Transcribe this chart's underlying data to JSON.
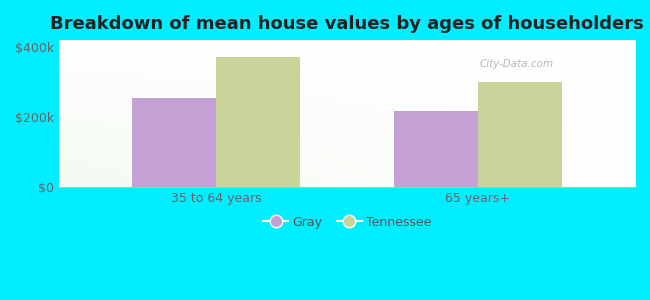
{
  "title": "Breakdown of mean house values by ages of householders",
  "categories": [
    "35 to 64 years",
    "65 years+"
  ],
  "gray_values": [
    255000,
    218000
  ],
  "tennessee_values": [
    372000,
    300000
  ],
  "gray_color": "#c4a0d4",
  "tennessee_color": "#c8d49a",
  "background_color": "#00eeff",
  "ylim": [
    0,
    420000
  ],
  "yticks": [
    0,
    200000,
    400000
  ],
  "ytick_labels": [
    "$0",
    "$200k",
    "$400k"
  ],
  "legend_labels": [
    "Gray",
    "Tennessee"
  ],
  "bar_width": 0.32,
  "title_fontsize": 13,
  "tick_fontsize": 9,
  "legend_fontsize": 9,
  "watermark": "City-Data.com",
  "plot_bg_color": "#e8f5e2"
}
